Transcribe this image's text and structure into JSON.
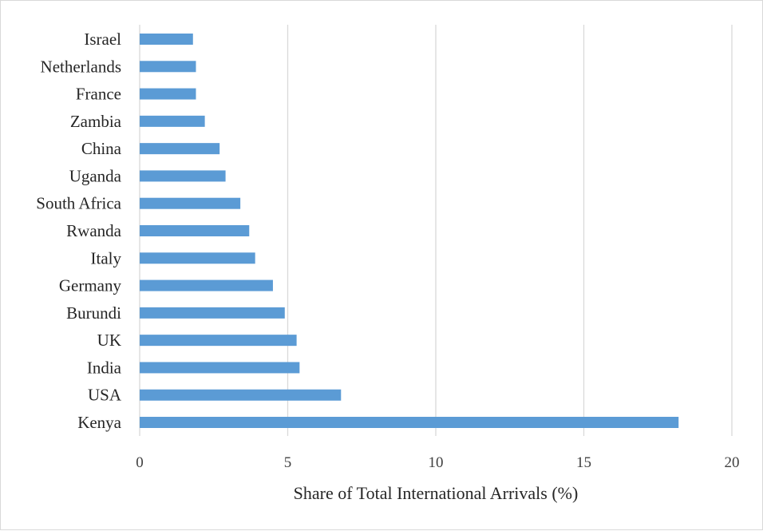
{
  "chart_data": {
    "type": "bar",
    "orientation": "horizontal",
    "categories": [
      "Kenya",
      "USA",
      "India",
      "UK",
      "Burundi",
      "Germany",
      "Italy",
      "Rwanda",
      "South Africa",
      "Uganda",
      "China",
      "Zambia",
      "France",
      "Netherlands",
      "Israel"
    ],
    "values": [
      18.2,
      6.8,
      5.4,
      5.3,
      4.9,
      4.5,
      3.9,
      3.7,
      3.4,
      2.9,
      2.7,
      2.2,
      1.9,
      1.9,
      1.8
    ],
    "xlabel": "Share of Total International Arrivals (%)",
    "ylabel": "",
    "xlim": [
      0,
      20
    ],
    "xticks": [
      "0",
      "5",
      "10",
      "15",
      "20"
    ],
    "grid": "vertical",
    "legend": "none",
    "bar_color": "#5b9bd5"
  }
}
